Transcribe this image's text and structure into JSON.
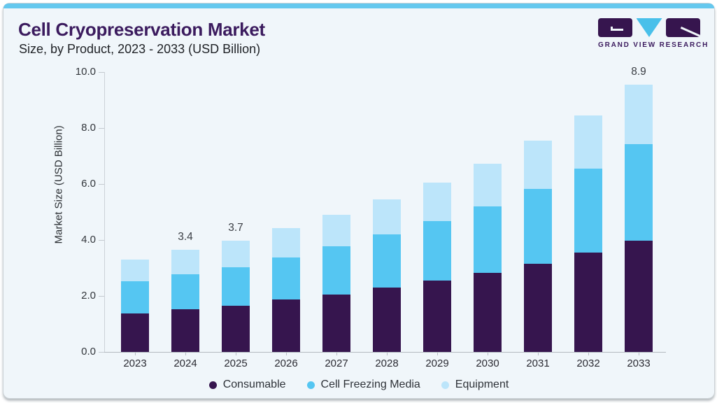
{
  "card": {
    "background": "#f0f6fa",
    "top_bar_color": "#65c8ee",
    "border_color": "#ccd2d6"
  },
  "header": {
    "title": "Cell Cryopreservation Market",
    "subtitle": "Size, by Product, 2023 - 2033 (USD Billion)",
    "title_color": "#3b1b5e"
  },
  "logo": {
    "text": "GRAND VIEW RESEARCH",
    "g_color": "#36154e",
    "v_color": "#49c0ea",
    "r_color": "#36154e"
  },
  "chart_data": {
    "type": "bar",
    "stacked": true,
    "title": "Cell Cryopreservation Market Size, by Product, 2023 - 2033 (USD Billion)",
    "categories": [
      "2023",
      "2024",
      "2025",
      "2026",
      "2027",
      "2028",
      "2029",
      "2030",
      "2031",
      "2032",
      "2033"
    ],
    "series": [
      {
        "name": "Consumable",
        "color": "#36154e",
        "values": [
          1.28,
          1.42,
          1.55,
          1.75,
          1.92,
          2.14,
          2.37,
          2.64,
          2.93,
          3.3,
          3.7
        ]
      },
      {
        "name": "Cell Freezing Media",
        "color": "#55c6f2",
        "values": [
          1.07,
          1.17,
          1.27,
          1.4,
          1.59,
          1.77,
          1.98,
          2.2,
          2.51,
          2.8,
          3.22
        ]
      },
      {
        "name": "Equipment",
        "color": "#bce5fa",
        "values": [
          0.72,
          0.81,
          0.88,
          0.97,
          1.06,
          1.18,
          1.3,
          1.44,
          1.59,
          1.77,
          1.98
        ]
      }
    ],
    "totals": [
      3.07,
      3.4,
      3.7,
      4.12,
      4.57,
      5.09,
      5.65,
      6.28,
      7.03,
      7.87,
      8.9
    ],
    "data_labels": {
      "2024": "3.4",
      "2025": "3.7",
      "2033": "8.9"
    },
    "ylabel": "Market Size (USD Billion)",
    "yticks": [
      0,
      2,
      4,
      6,
      8,
      10
    ],
    "ytick_labels": [
      "0.0",
      "2.0",
      "4.0",
      "6.0",
      "8.0",
      "10.0"
    ],
    "ylim": [
      0,
      10
    ],
    "grid": false,
    "legend_position": "bottom"
  }
}
